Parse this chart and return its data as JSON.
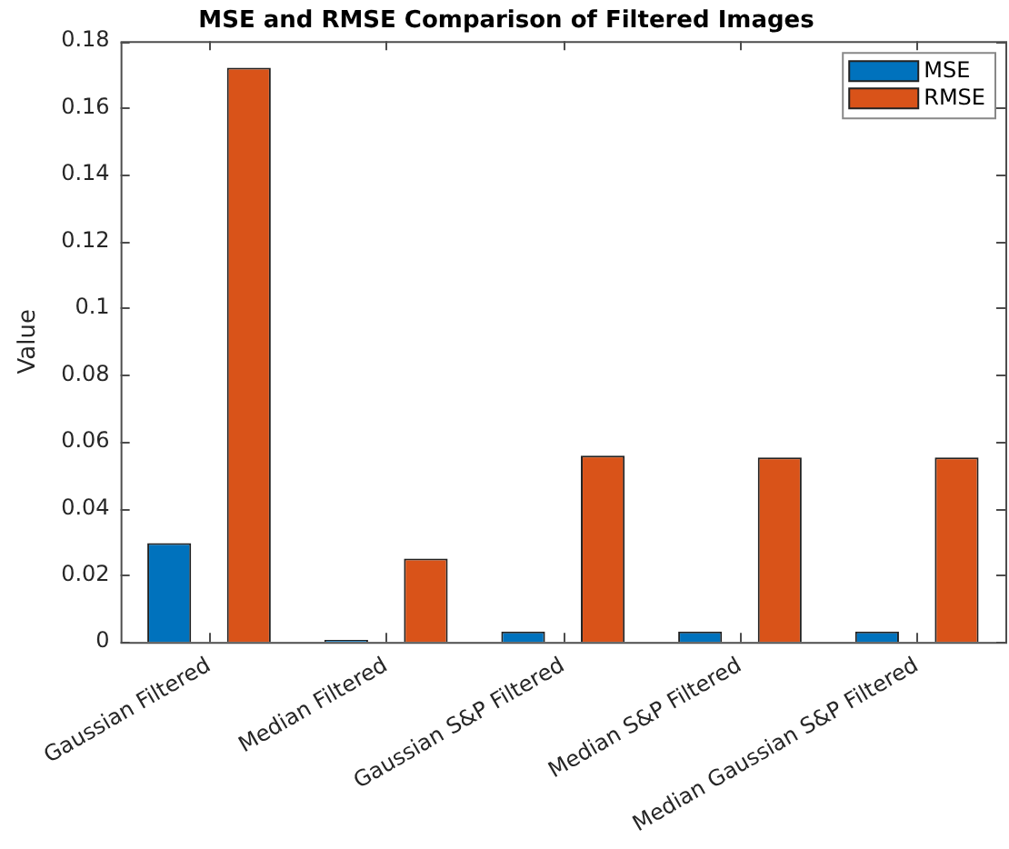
{
  "chart_data": {
    "type": "bar",
    "title": "MSE and RMSE Comparison of Filtered Images",
    "ylabel": "Value",
    "categories": [
      "Gaussian Filtered",
      "Median Filtered",
      "Gaussian S&P Filtered",
      "Median S&P Filtered",
      "Median Gaussian S&P Filtered"
    ],
    "series": [
      {
        "name": "MSE",
        "color": "#0072bd",
        "values": [
          0.0296,
          0.0006,
          0.0031,
          0.0031,
          0.0031
        ]
      },
      {
        "name": "RMSE",
        "color": "#d95319",
        "values": [
          0.172,
          0.025,
          0.0558,
          0.0553,
          0.0553
        ]
      }
    ],
    "ylim": [
      0,
      0.18
    ],
    "yticks": [
      0,
      0.02,
      0.04,
      0.06,
      0.08,
      0.1,
      0.12,
      0.14,
      0.16,
      0.18
    ],
    "grid": false,
    "legend": "top right"
  }
}
